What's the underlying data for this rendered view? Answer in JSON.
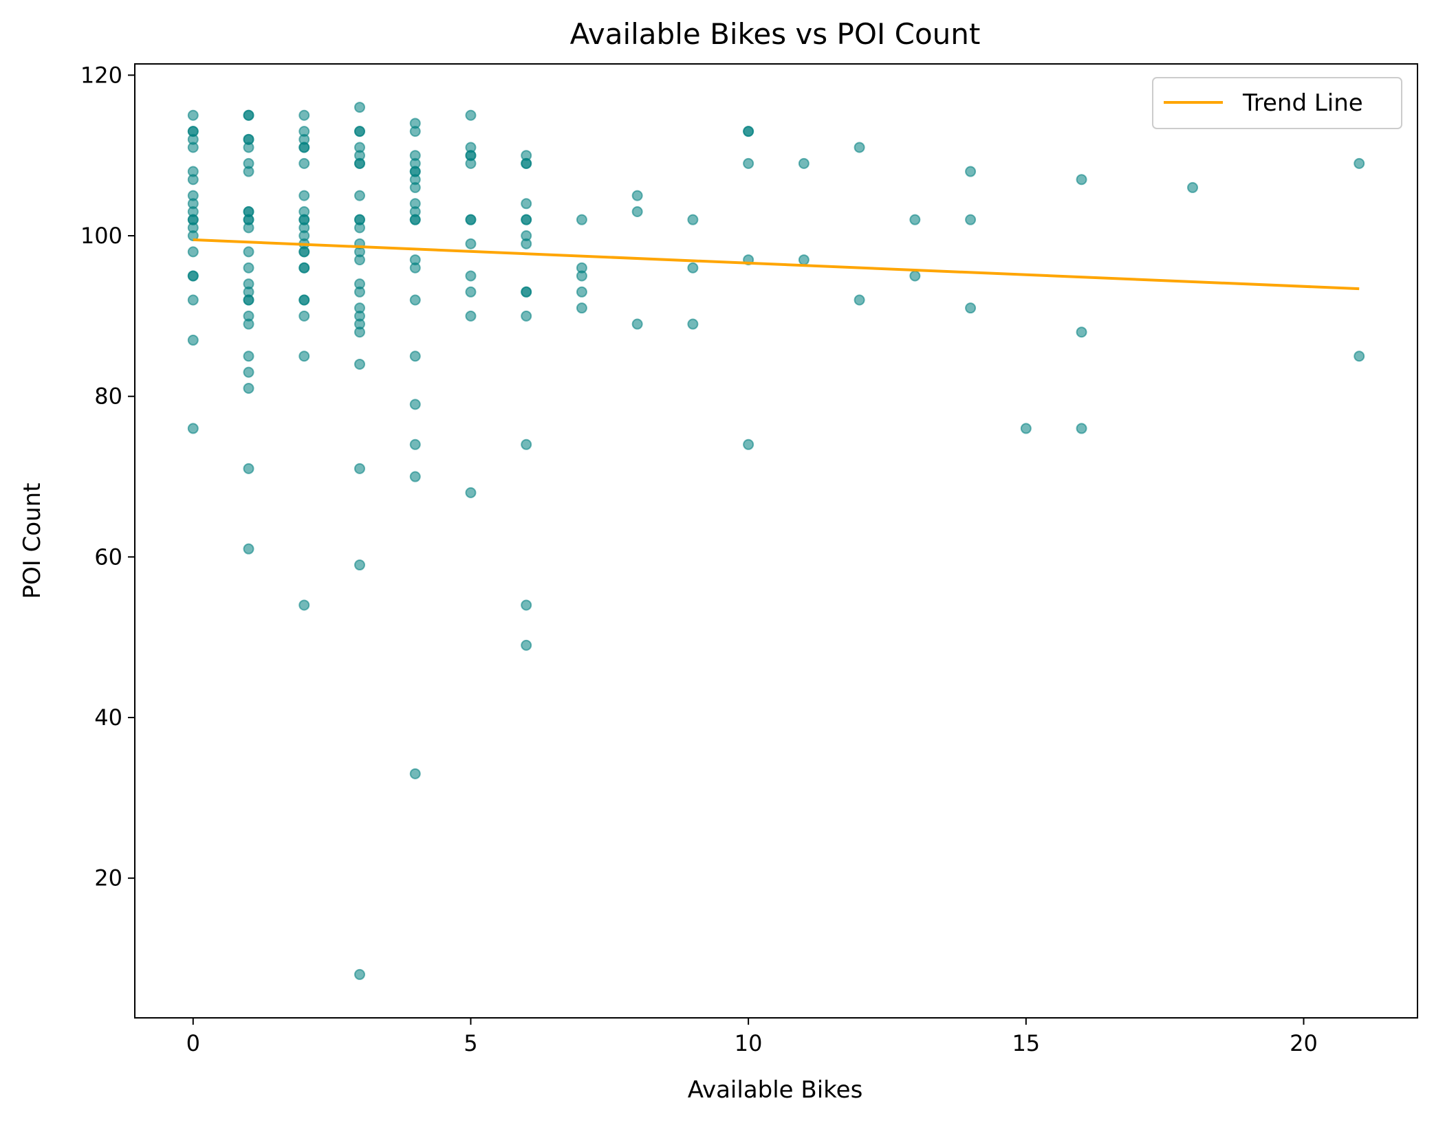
{
  "chart_data": {
    "type": "scatter",
    "title": "Available Bikes vs POI Count",
    "xlabel": "Available Bikes",
    "ylabel": "POI Count",
    "xlim": [
      -1.05,
      22.05
    ],
    "ylim": [
      2.6,
      121.4
    ],
    "xticks": [
      0,
      5,
      10,
      15,
      20
    ],
    "yticks": [
      20,
      40,
      60,
      80,
      100,
      120
    ],
    "grid": false,
    "legend": {
      "position": "top-right",
      "entries": [
        "Trend Line"
      ]
    },
    "colors": {
      "points": "#008080",
      "trend": "#FFA500"
    },
    "series": [
      {
        "kind": "points",
        "points": [
          [
            0,
            115
          ],
          [
            0,
            113
          ],
          [
            0,
            113
          ],
          [
            0,
            112
          ],
          [
            0,
            111
          ],
          [
            0,
            108
          ],
          [
            0,
            107
          ],
          [
            0,
            105
          ],
          [
            0,
            104
          ],
          [
            0,
            103
          ],
          [
            0,
            102
          ],
          [
            0,
            102
          ],
          [
            0,
            101
          ],
          [
            0,
            100
          ],
          [
            0,
            98
          ],
          [
            0,
            95
          ],
          [
            0,
            95
          ],
          [
            0,
            92
          ],
          [
            0,
            87
          ],
          [
            0,
            76
          ],
          [
            1,
            115
          ],
          [
            1,
            115
          ],
          [
            1,
            112
          ],
          [
            1,
            112
          ],
          [
            1,
            111
          ],
          [
            1,
            109
          ],
          [
            1,
            108
          ],
          [
            1,
            103
          ],
          [
            1,
            103
          ],
          [
            1,
            102
          ],
          [
            1,
            102
          ],
          [
            1,
            101
          ],
          [
            1,
            98
          ],
          [
            1,
            96
          ],
          [
            1,
            94
          ],
          [
            1,
            93
          ],
          [
            1,
            92
          ],
          [
            1,
            92
          ],
          [
            1,
            90
          ],
          [
            1,
            89
          ],
          [
            1,
            85
          ],
          [
            1,
            83
          ],
          [
            1,
            81
          ],
          [
            1,
            71
          ],
          [
            1,
            61
          ],
          [
            2,
            115
          ],
          [
            2,
            113
          ],
          [
            2,
            112
          ],
          [
            2,
            111
          ],
          [
            2,
            111
          ],
          [
            2,
            109
          ],
          [
            2,
            105
          ],
          [
            2,
            103
          ],
          [
            2,
            102
          ],
          [
            2,
            102
          ],
          [
            2,
            101
          ],
          [
            2,
            100
          ],
          [
            2,
            99
          ],
          [
            2,
            98
          ],
          [
            2,
            98
          ],
          [
            2,
            96
          ],
          [
            2,
            96
          ],
          [
            2,
            92
          ],
          [
            2,
            92
          ],
          [
            2,
            90
          ],
          [
            2,
            85
          ],
          [
            2,
            54
          ],
          [
            3,
            116
          ],
          [
            3,
            113
          ],
          [
            3,
            113
          ],
          [
            3,
            111
          ],
          [
            3,
            110
          ],
          [
            3,
            109
          ],
          [
            3,
            109
          ],
          [
            3,
            105
          ],
          [
            3,
            102
          ],
          [
            3,
            102
          ],
          [
            3,
            101
          ],
          [
            3,
            99
          ],
          [
            3,
            98
          ],
          [
            3,
            97
          ],
          [
            3,
            94
          ],
          [
            3,
            93
          ],
          [
            3,
            91
          ],
          [
            3,
            90
          ],
          [
            3,
            89
          ],
          [
            3,
            88
          ],
          [
            3,
            84
          ],
          [
            3,
            71
          ],
          [
            3,
            59
          ],
          [
            3,
            8
          ],
          [
            4,
            114
          ],
          [
            4,
            113
          ],
          [
            4,
            110
          ],
          [
            4,
            109
          ],
          [
            4,
            108
          ],
          [
            4,
            108
          ],
          [
            4,
            107
          ],
          [
            4,
            106
          ],
          [
            4,
            104
          ],
          [
            4,
            103
          ],
          [
            4,
            102
          ],
          [
            4,
            102
          ],
          [
            4,
            97
          ],
          [
            4,
            96
          ],
          [
            4,
            92
          ],
          [
            4,
            85
          ],
          [
            4,
            79
          ],
          [
            4,
            74
          ],
          [
            4,
            70
          ],
          [
            4,
            33
          ],
          [
            5,
            115
          ],
          [
            5,
            111
          ],
          [
            5,
            110
          ],
          [
            5,
            110
          ],
          [
            5,
            109
          ],
          [
            5,
            102
          ],
          [
            5,
            102
          ],
          [
            5,
            99
          ],
          [
            5,
            95
          ],
          [
            5,
            93
          ],
          [
            5,
            90
          ],
          [
            5,
            68
          ],
          [
            6,
            110
          ],
          [
            6,
            109
          ],
          [
            6,
            109
          ],
          [
            6,
            104
          ],
          [
            6,
            102
          ],
          [
            6,
            102
          ],
          [
            6,
            100
          ],
          [
            6,
            99
          ],
          [
            6,
            93
          ],
          [
            6,
            93
          ],
          [
            6,
            90
          ],
          [
            6,
            74
          ],
          [
            6,
            54
          ],
          [
            6,
            49
          ],
          [
            7,
            102
          ],
          [
            7,
            96
          ],
          [
            7,
            95
          ],
          [
            7,
            93
          ],
          [
            7,
            91
          ],
          [
            8,
            105
          ],
          [
            8,
            103
          ],
          [
            8,
            89
          ],
          [
            9,
            102
          ],
          [
            9,
            96
          ],
          [
            9,
            89
          ],
          [
            10,
            113
          ],
          [
            10,
            113
          ],
          [
            10,
            109
          ],
          [
            10,
            97
          ],
          [
            10,
            74
          ],
          [
            11,
            109
          ],
          [
            11,
            97
          ],
          [
            12,
            111
          ],
          [
            12,
            92
          ],
          [
            13,
            102
          ],
          [
            13,
            95
          ],
          [
            14,
            108
          ],
          [
            14,
            102
          ],
          [
            14,
            91
          ],
          [
            15,
            76
          ],
          [
            16,
            107
          ],
          [
            16,
            88
          ],
          [
            16,
            76
          ],
          [
            18,
            106
          ],
          [
            21,
            109
          ],
          [
            21,
            85
          ]
        ]
      },
      {
        "name": "Trend Line",
        "kind": "line",
        "x": [
          0,
          21
        ],
        "y": [
          99.5,
          93.4
        ]
      }
    ]
  }
}
